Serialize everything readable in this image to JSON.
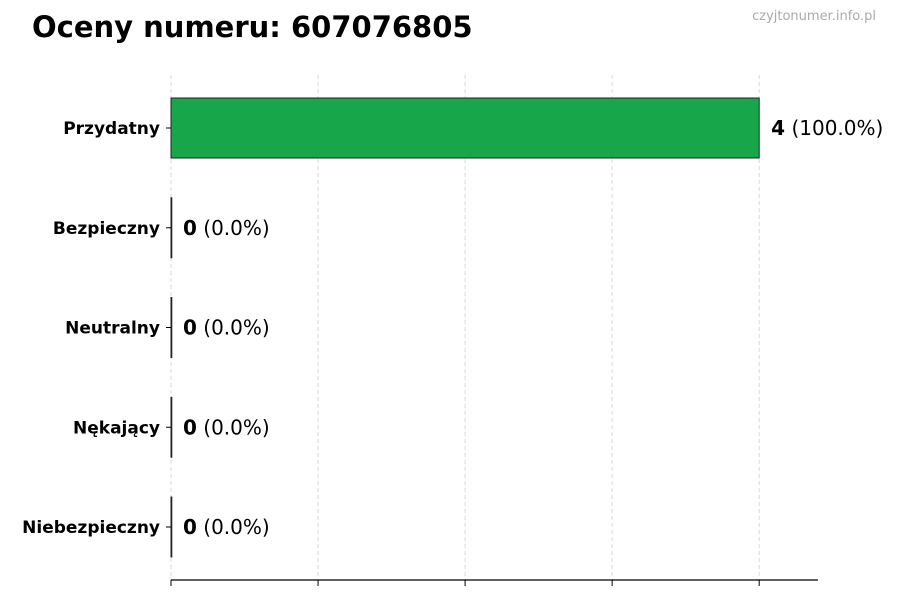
{
  "title": "Oceny numeru: 607076805",
  "watermark": "czyjtonumer.info.pl",
  "chart_data": {
    "type": "bar",
    "orientation": "horizontal",
    "title": "Oceny numeru: 607076805",
    "categories": [
      "Przydatny",
      "Bezpieczny",
      "Neutralny",
      "Nękający",
      "Niebezpieczny"
    ],
    "values": [
      4,
      0,
      0,
      0,
      0
    ],
    "data_labels": [
      {
        "count": "4",
        "percent": "(100.0%)"
      },
      {
        "count": "0",
        "percent": "(0.0%)"
      },
      {
        "count": "0",
        "percent": "(0.0%)"
      },
      {
        "count": "0",
        "percent": "(0.0%)"
      },
      {
        "count": "0",
        "percent": "(0.0%)"
      }
    ],
    "xlim": [
      0,
      4.4
    ],
    "xticks": [
      0,
      1,
      2,
      3,
      4
    ],
    "xtick_labels_shown": false,
    "grid": "vertical dashed",
    "bar_color": "#17a64a",
    "xlabel": "",
    "ylabel": ""
  }
}
